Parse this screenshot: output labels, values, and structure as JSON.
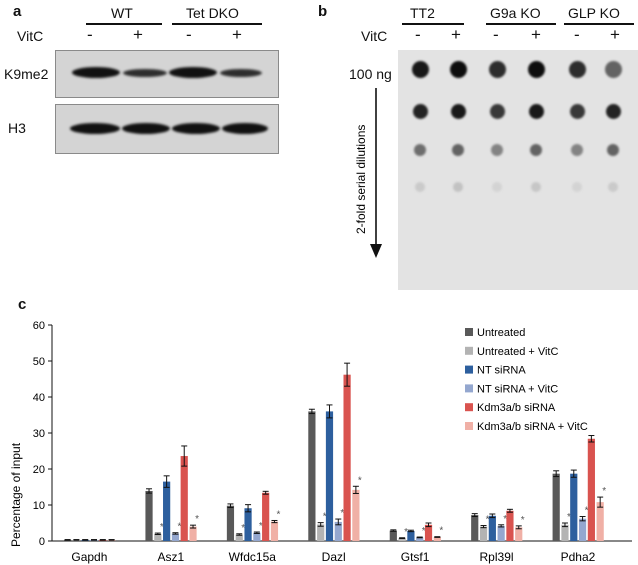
{
  "panel_a": {
    "letter": "a",
    "groups": [
      "WT",
      "Tet DKO"
    ],
    "condition_label": "VitC",
    "lane_signs": [
      "-",
      "+",
      "-",
      "+"
    ],
    "blots": [
      "K9me2",
      "H3"
    ]
  },
  "panel_b": {
    "letter": "b",
    "groups": [
      "TT2",
      "G9a KO",
      "GLP KO"
    ],
    "condition_label": "VitC",
    "lane_signs": [
      "-",
      "+",
      "-",
      "+",
      "-",
      "+"
    ],
    "amount_label": "100 ng",
    "dilution_label": "2-fold serial dilutions",
    "dot_intensity_rows": [
      [
        0.95,
        1.0,
        0.85,
        1.0,
        0.85,
        0.6
      ],
      [
        0.9,
        0.95,
        0.8,
        0.95,
        0.8,
        0.9
      ],
      [
        0.55,
        0.6,
        0.45,
        0.6,
        0.45,
        0.6
      ],
      [
        0.12,
        0.16,
        0.08,
        0.14,
        0.08,
        0.12
      ]
    ]
  },
  "panel_c": {
    "letter": "c"
  },
  "chart_data": {
    "type": "bar",
    "title": "",
    "xlabel": "",
    "ylabel": "Percentage of input",
    "ylim": [
      0,
      60
    ],
    "yticks": [
      0,
      10,
      20,
      30,
      40,
      50,
      60
    ],
    "categories": [
      "Gapdh",
      "Asz1",
      "Wfdc15a",
      "Dazl",
      "Gtsf1",
      "Rpl39l",
      "Pdha2"
    ],
    "series": [
      {
        "name": "Untreated",
        "color": "#595959",
        "values": [
          0.3,
          13.9,
          9.8,
          36.0,
          2.9,
          7.2,
          18.7
        ],
        "errors": [
          0.1,
          0.6,
          0.5,
          0.6,
          0.2,
          0.4,
          0.8
        ]
      },
      {
        "name": "Untreated + VitC",
        "color": "#b3b3b3",
        "values": [
          0.3,
          2.0,
          1.8,
          4.6,
          0.8,
          4.0,
          4.5
        ],
        "errors": [
          0.1,
          0.2,
          0.2,
          0.5,
          0.1,
          0.3,
          0.5
        ]
      },
      {
        "name": "NT siRNA",
        "color": "#2d5f9e",
        "values": [
          0.3,
          16.5,
          9.1,
          36.0,
          2.8,
          7.0,
          18.7
        ],
        "errors": [
          0.1,
          1.6,
          1.0,
          1.8,
          0.2,
          0.5,
          1.0
        ]
      },
      {
        "name": "NT siRNA + VitC",
        "color": "#94a7cf",
        "values": [
          0.3,
          2.1,
          2.3,
          5.3,
          1.0,
          4.2,
          6.2
        ],
        "errors": [
          0.1,
          0.2,
          0.2,
          0.8,
          0.1,
          0.3,
          0.6
        ]
      },
      {
        "name": "Kdm3a/b siRNA",
        "color": "#d9534f",
        "values": [
          0.3,
          23.6,
          13.4,
          46.2,
          4.5,
          8.4,
          28.4
        ],
        "errors": [
          0.1,
          2.8,
          0.4,
          3.2,
          0.5,
          0.4,
          0.9
        ]
      },
      {
        "name": "Kdm3a/b siRNA + VitC",
        "color": "#f0b0a6",
        "values": [
          0.3,
          4.0,
          5.4,
          14.2,
          1.1,
          3.8,
          10.8
        ],
        "errors": [
          0.1,
          0.4,
          0.3,
          1.0,
          0.1,
          0.4,
          1.4
        ]
      }
    ],
    "significance_marks": [
      "*",
      "*",
      "*"
    ],
    "legend_position": "top-right",
    "grid": false
  }
}
